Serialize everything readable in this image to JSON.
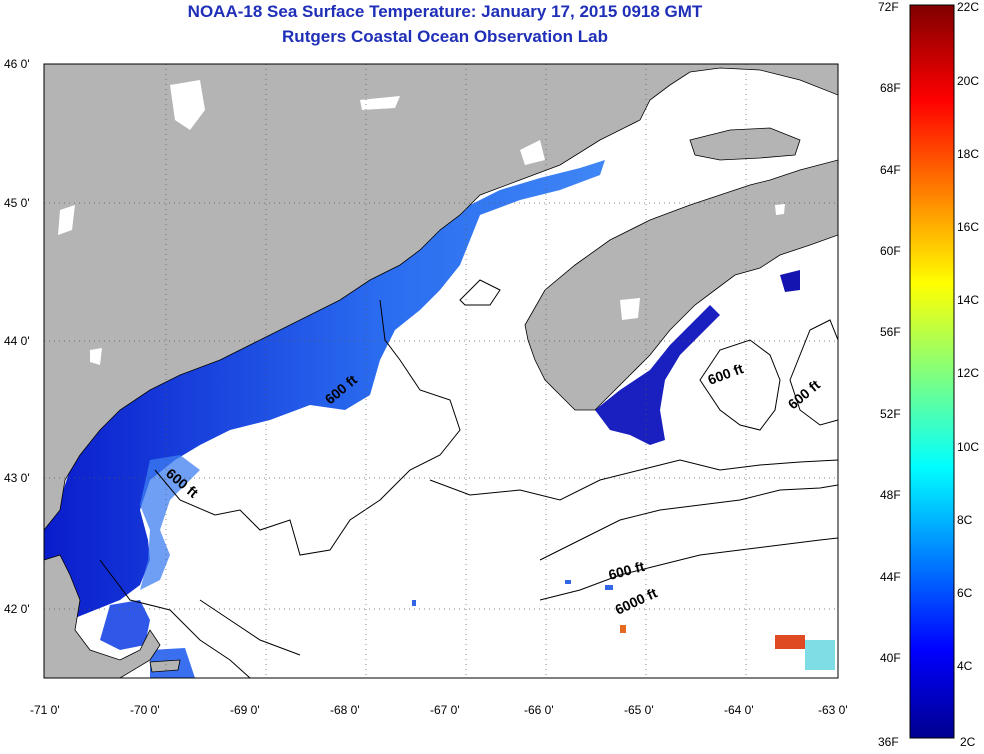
{
  "header": {
    "title": "NOAA-18 Sea Surface Temperature:  January 17, 2015 0918 GMT",
    "subtitle": "Rutgers Coastal Ocean Observation Lab"
  },
  "axes": {
    "lon_labels": [
      "-71 0'",
      "-70 0'",
      "-69 0'",
      "-68 0'",
      "-67 0'",
      "-66 0'",
      "-65 0'",
      "-64 0'",
      "-63 0'"
    ],
    "lat_labels": [
      "46 0'",
      "45 0'",
      "44 0'",
      "43 0'",
      "42 0'"
    ]
  },
  "colorbar": {
    "fahrenheit": [
      "72F",
      "68F",
      "64F",
      "60F",
      "56F",
      "52F",
      "48F",
      "44F",
      "40F",
      "36F"
    ],
    "celsius": [
      "22C",
      "20C",
      "18C",
      "16C",
      "14C",
      "12C",
      "10C",
      "8C",
      "6C",
      "4C",
      "2C"
    ],
    "colors": [
      "#00008f",
      "#0000ff",
      "#00ffff",
      "#ffff00",
      "#ff0000",
      "#800000"
    ]
  },
  "contours": {
    "labels": [
      "600 ft",
      "600 ft",
      "600 ft",
      "600 ft",
      "600 ft",
      "6000 ft"
    ]
  },
  "colors": {
    "land": "#b4b4b4",
    "water": "#ffffff",
    "sst_cold": "#0a1ccc",
    "sst_mid": "#2a6cf0",
    "title": "#1f2fb8"
  }
}
